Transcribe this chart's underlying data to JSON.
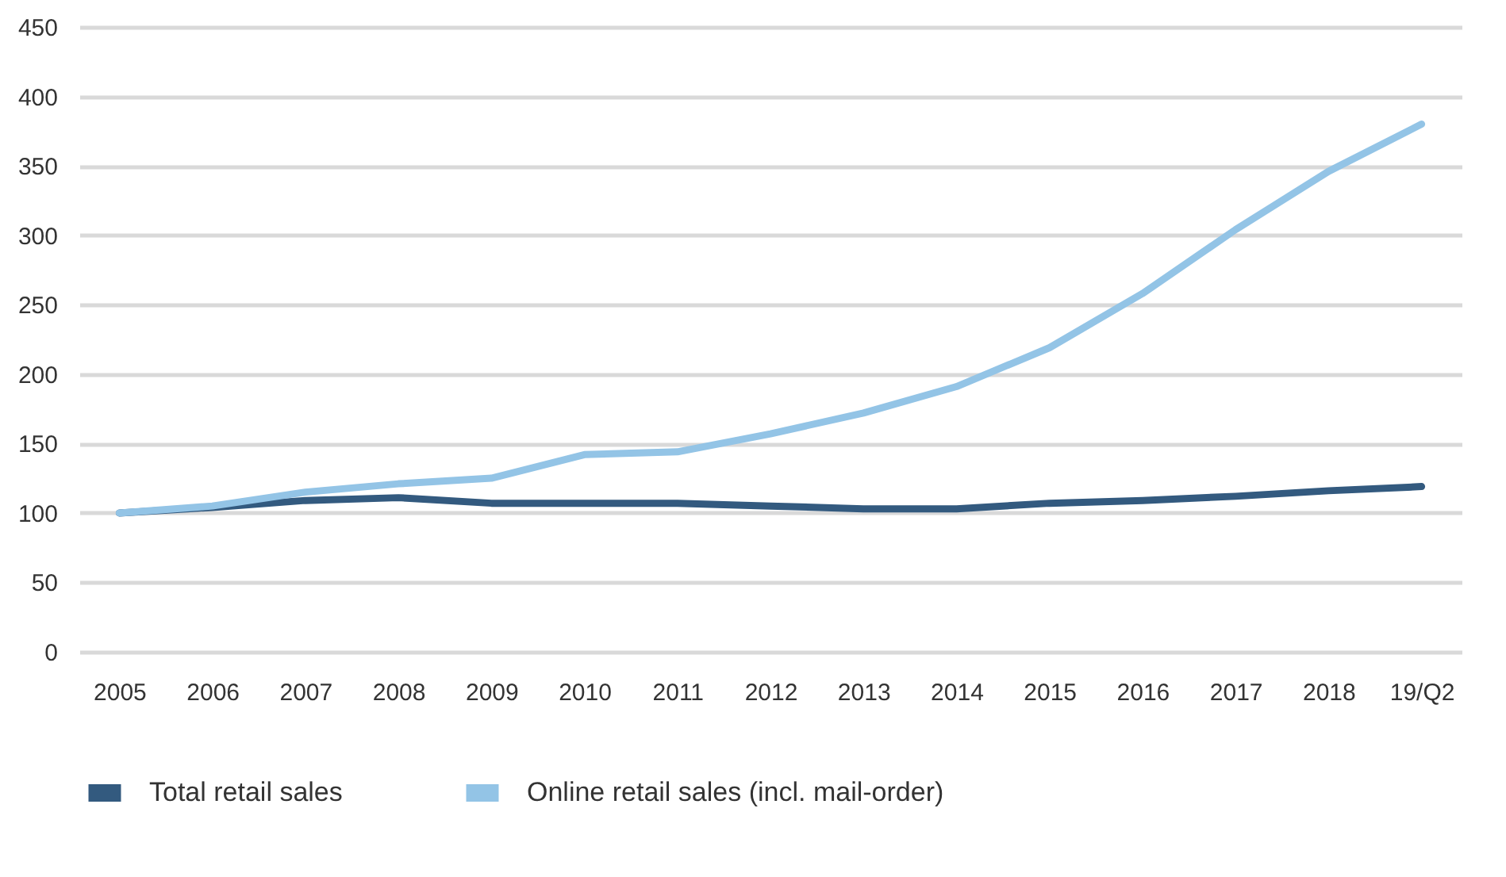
{
  "chart_data": {
    "type": "line",
    "categories": [
      "2005",
      "2006",
      "2007",
      "2008",
      "2009",
      "2010",
      "2011",
      "2012",
      "2013",
      "2014",
      "2015",
      "2016",
      "2017",
      "2018",
      "19/Q2"
    ],
    "series": [
      {
        "name": "Total retail sales",
        "color": "#335a7f",
        "values": [
          100,
          104,
          109,
          111,
          107,
          107,
          107,
          105,
          103,
          103,
          107,
          109,
          112,
          116,
          119
        ]
      },
      {
        "name": "Online retail sales (incl. mail-order)",
        "color": "#93c4e6",
        "values": [
          100,
          105,
          115,
          121,
          125,
          142,
          144,
          157,
          172,
          191,
          219,
          258,
          304,
          346,
          380
        ]
      }
    ],
    "ylim": [
      0,
      450
    ],
    "yticks": [
      0,
      50,
      100,
      150,
      200,
      250,
      300,
      350,
      400,
      450
    ],
    "grid": "y",
    "legend": "bottom",
    "marker": "none",
    "line_style": "solid"
  }
}
